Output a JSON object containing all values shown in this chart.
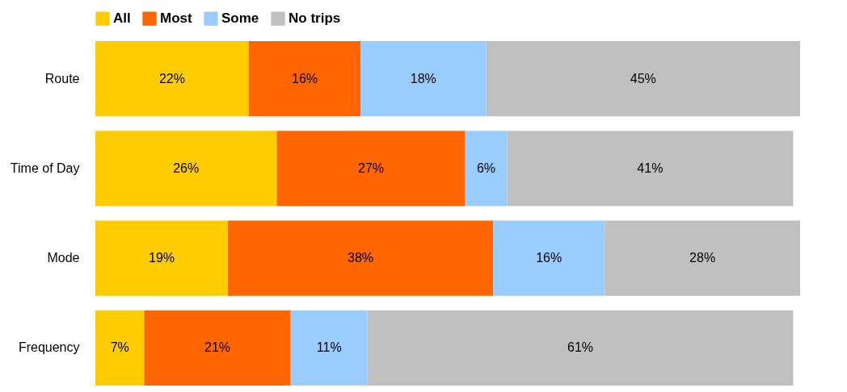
{
  "chart_data": {
    "type": "bar",
    "orientation": "horizontal",
    "stacked": true,
    "legend": "top",
    "tick_labels": "y",
    "categories": [
      "Route",
      "Time of Day",
      "Mode",
      "Frequency"
    ],
    "series": [
      {
        "name": "All",
        "color": "#ffcc00",
        "values": [
          22,
          26,
          19,
          7
        ],
        "value_labels": [
          "22%",
          "26%",
          "19%",
          "7%"
        ]
      },
      {
        "name": "Most",
        "color": "#ff6600",
        "values": [
          16,
          27,
          38,
          21
        ],
        "value_labels": [
          "16%",
          "27%",
          "38%",
          "21%"
        ]
      },
      {
        "name": "Some",
        "color": "#99ccff",
        "values": [
          18,
          6,
          16,
          11
        ],
        "value_labels": [
          "18%",
          "6%",
          "16%",
          "11%"
        ]
      },
      {
        "name": "No trips",
        "color": "#c0c0c0",
        "values": [
          45,
          41,
          28,
          61
        ],
        "value_labels": [
          "45%",
          "41%",
          "28%",
          "61%"
        ]
      }
    ]
  }
}
